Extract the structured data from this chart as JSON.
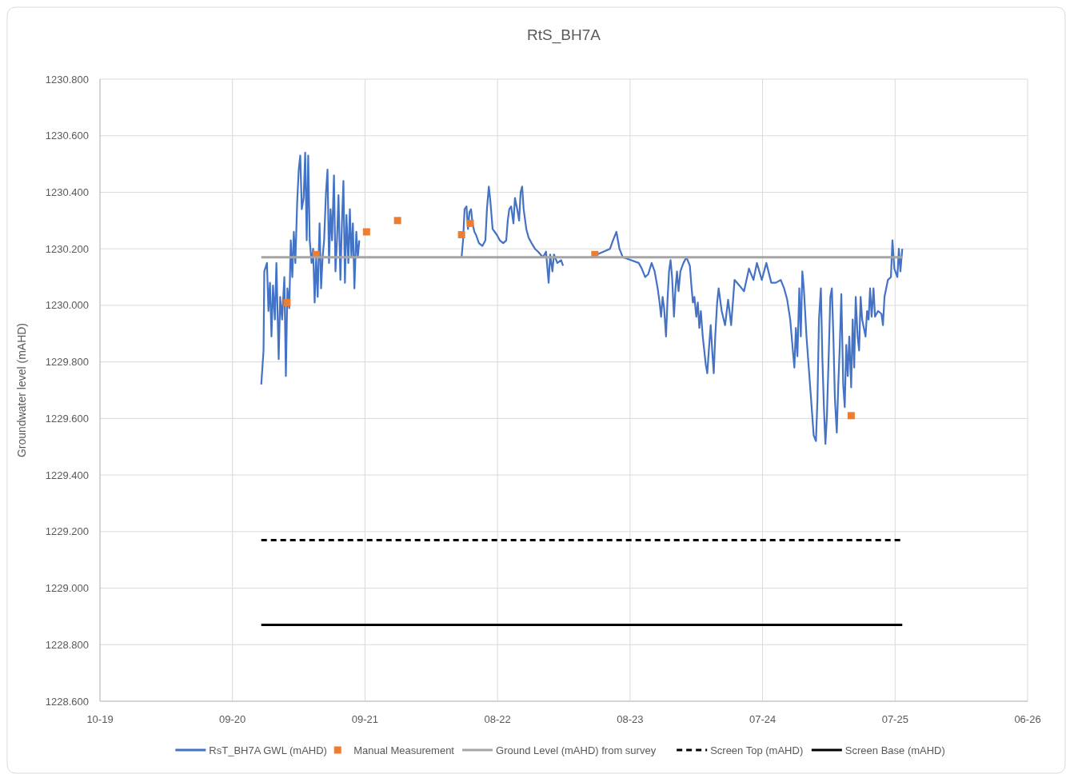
{
  "chart_data": {
    "type": "line",
    "title": "RtS_BH7A",
    "ylabel": "Groundwater level (mAHD)",
    "xlim": [
      "2019-10-15",
      "2026-06-30"
    ],
    "xticks": [
      {
        "value": "2019-10-15",
        "label": "10-19"
      },
      {
        "value": "2020-09-29",
        "label": "09-20"
      },
      {
        "value": "2021-09-14",
        "label": "09-21"
      },
      {
        "value": "2022-08-30",
        "label": "08-22"
      },
      {
        "value": "2023-08-15",
        "label": "08-23"
      },
      {
        "value": "2024-07-30",
        "label": "07-24"
      },
      {
        "value": "2025-07-15",
        "label": "07-25"
      },
      {
        "value": "2026-06-30",
        "label": "06-26"
      }
    ],
    "ylim": [
      1228.6,
      1230.8
    ],
    "yticks": [
      {
        "value": 1228.6,
        "label": "1228.600"
      },
      {
        "value": 1228.8,
        "label": "1228.800"
      },
      {
        "value": 1229.0,
        "label": "1229.000"
      },
      {
        "value": 1229.2,
        "label": "1229.200"
      },
      {
        "value": 1229.4,
        "label": "1229.400"
      },
      {
        "value": 1229.6,
        "label": "1229.600"
      },
      {
        "value": 1229.8,
        "label": "1229.800"
      },
      {
        "value": 1230.0,
        "label": "1230.000"
      },
      {
        "value": 1230.2,
        "label": "1230.200"
      },
      {
        "value": 1230.4,
        "label": "1230.400"
      },
      {
        "value": 1230.6,
        "label": "1230.600"
      },
      {
        "value": 1230.8,
        "label": "1230.800"
      }
    ],
    "grid": true,
    "legend": "bottom",
    "series": [
      {
        "name": "RsT_BH7A GWL (mAHD)",
        "color": "#4472c4",
        "line_style": "solid",
        "marker": "none",
        "x": [
          "2020-12-14",
          "2020-12-20",
          "2020-12-22",
          "2020-12-29",
          "2021-01-02",
          "2021-01-06",
          "2021-01-10",
          "2021-01-14",
          "2021-01-19",
          "2021-01-23",
          "2021-01-29",
          "2021-02-02",
          "2021-02-07",
          "2021-02-13",
          "2021-02-17",
          "2021-02-21",
          "2021-02-26",
          "2021-03-02",
          "2021-03-06",
          "2021-03-10",
          "2021-03-14",
          "2021-03-19",
          "2021-03-23",
          "2021-03-27",
          "2021-03-31",
          "2021-04-05",
          "2021-04-09",
          "2021-04-13",
          "2021-04-17",
          "2021-04-21",
          "2021-04-26",
          "2021-04-30",
          "2021-05-04",
          "2021-05-08",
          "2021-05-12",
          "2021-05-17",
          "2021-05-21",
          "2021-05-25",
          "2021-05-29",
          "2021-06-03",
          "2021-06-07",
          "2021-06-11",
          "2021-06-15",
          "2021-06-19",
          "2021-06-24",
          "2021-06-28",
          "2021-07-02",
          "2021-07-06",
          "2021-07-11",
          "2021-07-15",
          "2021-07-19",
          "2021-07-23",
          "2021-07-27",
          "2021-08-01",
          "2021-08-05",
          "2021-08-09",
          "2021-08-13",
          "2021-08-17",
          "2021-08-22",
          "2021-08-26",
          "2021-08-30",
          "2022-01-01",
          "2022-05-27",
          "2022-05-31",
          "2022-06-04",
          "2022-06-09",
          "2022-06-13",
          "2022-06-17",
          "2022-06-21",
          "2022-06-25",
          "2022-06-30",
          "2022-07-04",
          "2022-07-12",
          "2022-07-21",
          "2022-07-29",
          "2022-08-02",
          "2022-08-07",
          "2022-08-11",
          "2022-08-17",
          "2022-08-28",
          "2022-09-05",
          "2022-09-14",
          "2022-09-22",
          "2022-09-26",
          "2022-09-30",
          "2022-10-05",
          "2022-10-11",
          "2022-10-15",
          "2022-10-21",
          "2022-10-26",
          "2022-10-30",
          "2022-11-03",
          "2022-11-07",
          "2022-11-14",
          "2022-11-20",
          "2022-11-28",
          "2022-12-07",
          "2022-12-15",
          "2022-12-28",
          "2023-01-05",
          "2023-01-12",
          "2023-01-16",
          "2023-01-22",
          "2023-01-26",
          "2023-02-04",
          "2023-02-14",
          "2023-02-19",
          "2023-04-01",
          "2023-05-20",
          "2023-06-06",
          "2023-06-23",
          "2023-07-01",
          "2023-07-10",
          "2023-07-18",
          "2023-07-27",
          "2023-08-17",
          "2023-09-07",
          "2023-09-15",
          "2023-09-24",
          "2023-10-02",
          "2023-10-11",
          "2023-10-19",
          "2023-10-27",
          "2023-11-01",
          "2023-11-05",
          "2023-11-09",
          "2023-11-13",
          "2023-11-18",
          "2023-11-22",
          "2023-11-26",
          "2023-11-30",
          "2023-12-04",
          "2023-12-09",
          "2023-12-13",
          "2023-12-17",
          "2023-12-21",
          "2023-12-26",
          "2024-01-03",
          "2024-01-11",
          "2024-01-20",
          "2024-01-24",
          "2024-01-28",
          "2024-02-01",
          "2024-02-06",
          "2024-02-10",
          "2024-02-14",
          "2024-02-18",
          "2024-02-23",
          "2024-02-27",
          "2024-03-02",
          "2024-03-06",
          "2024-03-10",
          "2024-03-15",
          "2024-03-19",
          "2024-03-23",
          "2024-03-27",
          "2024-04-01",
          "2024-04-05",
          "2024-04-13",
          "2024-04-22",
          "2024-04-30",
          "2024-05-08",
          "2024-05-17",
          "2024-05-30",
          "2024-06-11",
          "2024-06-24",
          "2024-07-06",
          "2024-07-15",
          "2024-07-28",
          "2024-08-09",
          "2024-08-22",
          "2024-09-03",
          "2024-09-16",
          "2024-09-25",
          "2024-10-03",
          "2024-10-11",
          "2024-10-18",
          "2024-10-22",
          "2024-10-26",
          "2024-10-30",
          "2024-11-04",
          "2024-11-08",
          "2024-11-12",
          "2024-11-16",
          "2024-11-23",
          "2024-11-29",
          "2024-12-05",
          "2024-12-12",
          "2024-12-18",
          "2024-12-22",
          "2024-12-26",
          "2024-12-31",
          "2025-01-04",
          "2025-01-08",
          "2025-01-12",
          "2025-01-16",
          "2025-01-21",
          "2025-01-25",
          "2025-01-29",
          "2025-02-02",
          "2025-02-06",
          "2025-02-11",
          "2025-02-15",
          "2025-02-19",
          "2025-02-23",
          "2025-02-28",
          "2025-03-04",
          "2025-03-08",
          "2025-03-12",
          "2025-03-16",
          "2025-03-21",
          "2025-03-25",
          "2025-03-29",
          "2025-04-02",
          "2025-04-07",
          "2025-04-11",
          "2025-04-15",
          "2025-04-19",
          "2025-04-28",
          "2025-05-02",
          "2025-05-06",
          "2025-05-10",
          "2025-05-14",
          "2025-05-19",
          "2025-05-23",
          "2025-05-31",
          "2025-06-09",
          "2025-06-13",
          "2025-06-17",
          "2025-06-26",
          "2025-07-04",
          "2025-07-08",
          "2025-07-13",
          "2025-07-21",
          "2025-07-25",
          "2025-07-29",
          "2025-08-03"
        ],
        "values": [
          1229.72,
          1229.84,
          1230.12,
          1230.15,
          1229.98,
          1230.08,
          1229.89,
          1230.07,
          1229.95,
          1230.15,
          1229.81,
          1230.03,
          1229.95,
          1230.1,
          1229.75,
          1230.06,
          1229.99,
          1230.23,
          1230.1,
          1230.26,
          1230.15,
          1230.37,
          1230.48,
          1230.53,
          1230.34,
          1230.38,
          1230.54,
          1230.23,
          1230.53,
          1230.23,
          1230.15,
          1230.2,
          1230.01,
          1230.17,
          1230.03,
          1230.29,
          1230.06,
          1230.17,
          1230.23,
          1230.4,
          1230.48,
          1230.15,
          1230.34,
          1230.23,
          1230.46,
          1230.12,
          1230.23,
          1230.39,
          1230.09,
          1230.29,
          1230.44,
          1230.08,
          1230.32,
          1230.15,
          1230.34,
          1230.17,
          1230.29,
          1230.06,
          1230.26,
          1230.17,
          1230.23,
          null,
          1230.17,
          1230.23,
          1230.34,
          1230.35,
          1230.27,
          1230.33,
          1230.34,
          1230.29,
          1230.26,
          1230.25,
          1230.22,
          1230.21,
          1230.23,
          1230.34,
          1230.42,
          1230.37,
          1230.27,
          1230.25,
          1230.23,
          1230.22,
          1230.23,
          1230.3,
          1230.34,
          1230.35,
          1230.29,
          1230.38,
          1230.34,
          1230.3,
          1230.4,
          1230.42,
          1230.34,
          1230.27,
          1230.24,
          1230.22,
          1230.2,
          1230.19,
          1230.17,
          1230.19,
          1230.08,
          1230.18,
          1230.12,
          1230.18,
          1230.15,
          1230.16,
          1230.14,
          null,
          1230.18,
          1230.19,
          1230.2,
          1230.23,
          1230.26,
          1230.2,
          1230.17,
          1230.16,
          1230.15,
          1230.13,
          1230.1,
          1230.11,
          1230.15,
          1230.12,
          1230.06,
          1230.01,
          1229.96,
          1230.03,
          1229.99,
          1229.89,
          1230.02,
          1230.12,
          1230.16,
          1230.1,
          1229.96,
          1230.06,
          1230.12,
          1230.05,
          1230.12,
          1230.15,
          1230.17,
          1230.14,
          1230.07,
          1230.01,
          1230.03,
          1229.96,
          1230.01,
          1229.92,
          1229.98,
          1229.89,
          1229.84,
          1229.79,
          1229.76,
          1229.84,
          1229.93,
          1229.84,
          1229.76,
          1229.89,
          1230.01,
          1230.06,
          1229.98,
          1229.93,
          1230.02,
          1229.93,
          1230.09,
          1230.07,
          1230.05,
          1230.13,
          1230.09,
          1230.15,
          1230.09,
          1230.15,
          1230.08,
          1230.08,
          1230.09,
          1230.06,
          1230.02,
          1229.95,
          1229.84,
          1229.78,
          1229.92,
          1229.82,
          1230.06,
          1229.89,
          1230.12,
          1230.06,
          1229.89,
          1229.78,
          1229.67,
          1229.54,
          1229.52,
          1229.67,
          1229.95,
          1230.06,
          1229.81,
          1229.64,
          1229.51,
          1229.61,
          1229.84,
          1230.03,
          1230.06,
          1229.89,
          1229.67,
          1229.55,
          1229.72,
          1229.86,
          1230.04,
          1229.72,
          1229.64,
          1229.86,
          1229.75,
          1229.89,
          1229.71,
          1229.95,
          1229.78,
          1230.03,
          1229.89,
          1229.84,
          1230.03,
          1229.95,
          1229.89,
          1229.98,
          1229.95,
          1230.06,
          1229.96,
          1230.06,
          1229.96,
          1229.98,
          1229.97,
          1229.93,
          1230.03,
          1230.09,
          1230.1,
          1230.23,
          1230.13,
          1230.1,
          1230.2,
          1230.12,
          1230.2
        ]
      },
      {
        "name": "Manual Measurement",
        "type": "scatter",
        "color": "#ed7d31",
        "marker": "square",
        "x": [
          "2021-02-20",
          "2021-05-08",
          "2021-09-18",
          "2021-12-09",
          "2022-05-27",
          "2022-06-19",
          "2023-05-14",
          "2025-03-21"
        ],
        "values": [
          1230.01,
          1230.18,
          1230.26,
          1230.3,
          1230.25,
          1230.29,
          1230.18,
          1229.61
        ]
      },
      {
        "name": "Ground Level (mAHD) from survey",
        "color": "#a5a5a5",
        "line_style": "solid",
        "marker": "none",
        "x": [
          "2020-12-14",
          "2025-08-03"
        ],
        "values": [
          1230.17,
          1230.17
        ]
      },
      {
        "name": "Screen Top (mAHD)",
        "color": "#000000",
        "line_style": "dashed",
        "marker": "none",
        "x": [
          "2020-12-14",
          "2025-08-03"
        ],
        "values": [
          1229.17,
          1229.17
        ]
      },
      {
        "name": "Screen Base (mAHD)",
        "color": "#000000",
        "line_style": "solid",
        "marker": "none",
        "x": [
          "2020-12-14",
          "2025-08-03"
        ],
        "values": [
          1228.87,
          1228.87
        ]
      }
    ]
  }
}
